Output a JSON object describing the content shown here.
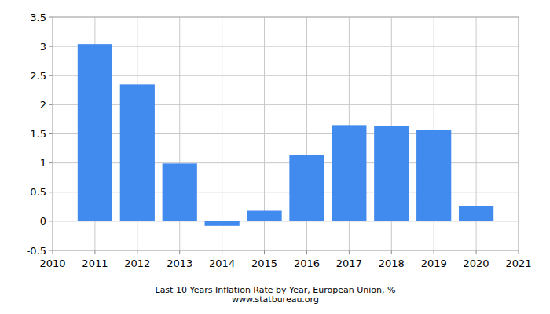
{
  "chart_data": {
    "type": "bar",
    "title": "Last 10 Years Inflation Rate by Year, European Union, %",
    "subtitle": "www.statbureau.org",
    "x": [
      2011,
      2012,
      2013,
      2014,
      2015,
      2016,
      2017,
      2018,
      2019,
      2020
    ],
    "values": [
      3.04,
      2.35,
      0.99,
      -0.08,
      0.18,
      1.13,
      1.65,
      1.64,
      1.57,
      0.26
    ],
    "color": "#428bee",
    "xlim": [
      2010,
      2021
    ],
    "xticks": [
      2010,
      2011,
      2012,
      2013,
      2014,
      2015,
      2016,
      2017,
      2018,
      2019,
      2020,
      2021
    ],
    "ylim": [
      -0.5,
      3.5
    ],
    "yticks": [
      -0.5,
      0,
      0.5,
      1,
      1.5,
      2,
      2.5,
      3,
      3.5
    ],
    "grid": true
  }
}
